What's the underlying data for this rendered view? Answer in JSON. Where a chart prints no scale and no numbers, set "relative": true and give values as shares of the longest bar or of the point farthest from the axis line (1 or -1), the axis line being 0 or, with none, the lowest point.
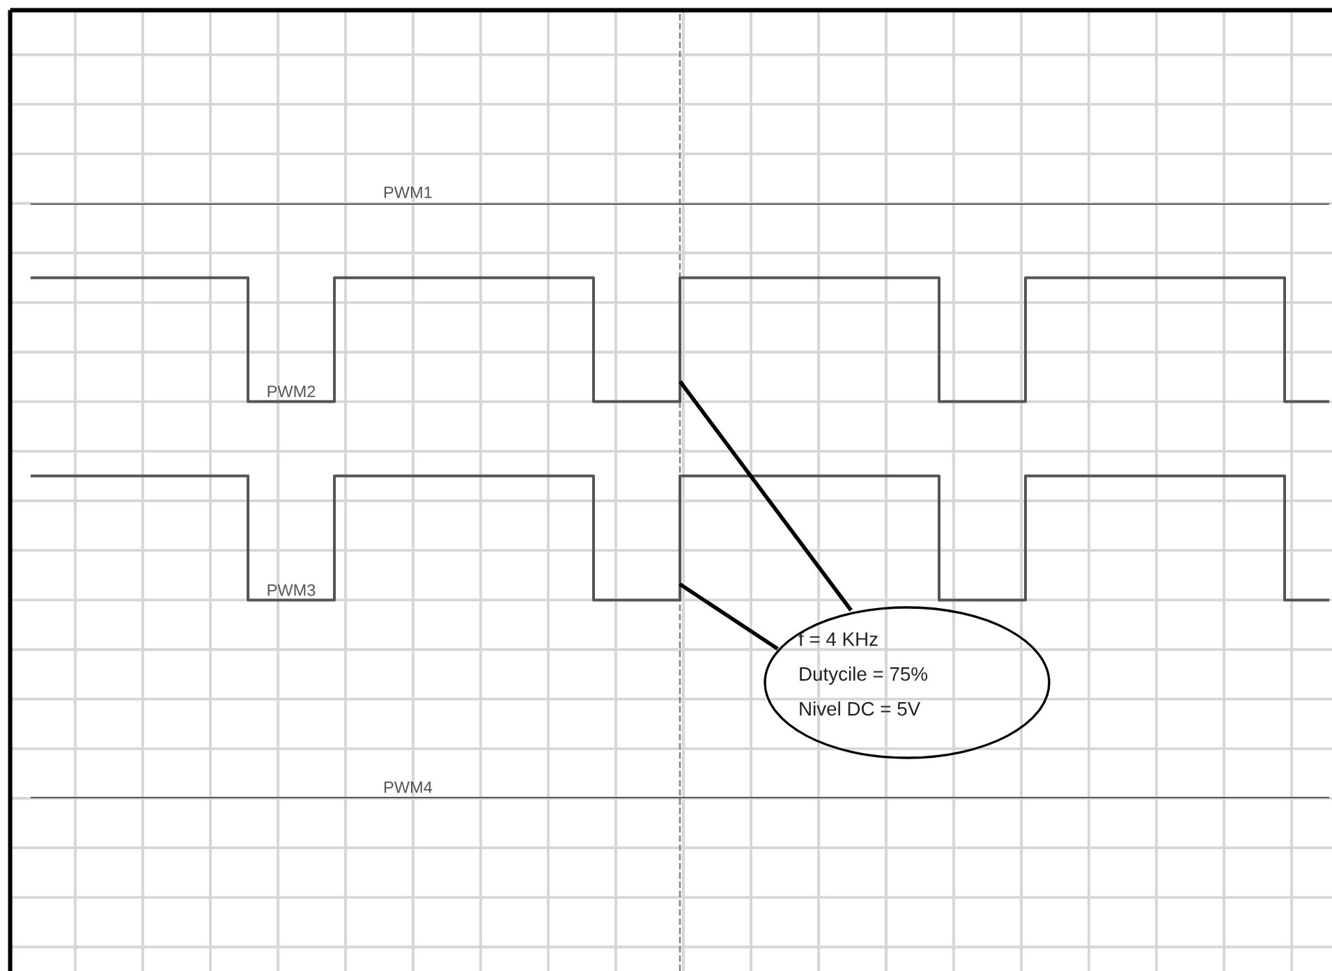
{
  "chart_data": {
    "type": "step",
    "relative": true,
    "categories": [
      null,
      null,
      null,
      null,
      null,
      null,
      null,
      null,
      null,
      null,
      null,
      null,
      null,
      null,
      null,
      null,
      null,
      null,
      null,
      null,
      null,
      null,
      null,
      null,
      null,
      null,
      null,
      null,
      null,
      null,
      null
    ],
    "series": [
      {
        "name": "PWM1",
        "color": "#555555",
        "values": [
          1,
          1,
          1,
          1,
          1,
          1,
          1,
          1,
          1,
          1,
          1,
          1,
          1,
          1,
          1,
          1,
          1,
          1,
          1,
          1,
          1,
          1,
          1,
          1,
          1,
          1,
          1,
          1,
          1,
          1,
          1
        ]
      },
      {
        "name": "PWM2",
        "color": "#555555",
        "values": [
          0.875,
          0.875,
          0.875,
          0.875,
          0.875,
          0.667,
          0.667,
          0.875,
          0.875,
          0.875,
          0.875,
          0.875,
          0.875,
          0.667,
          0.667,
          0.875,
          0.875,
          0.875,
          0.875,
          0.875,
          0.875,
          0.667,
          0.667,
          0.875,
          0.875,
          0.875,
          0.875,
          0.875,
          0.875,
          0.667,
          0.667
        ]
      },
      {
        "name": "PWM3",
        "color": "#555555",
        "values": [
          0.542,
          0.542,
          0.542,
          0.542,
          0.542,
          0.333,
          0.333,
          0.542,
          0.542,
          0.542,
          0.542,
          0.542,
          0.542,
          0.333,
          0.333,
          0.542,
          0.542,
          0.542,
          0.542,
          0.542,
          0.542,
          0.333,
          0.333,
          0.542,
          0.542,
          0.542,
          0.542,
          0.542,
          0.542,
          0.333,
          0.333
        ]
      },
      {
        "name": "PWM4",
        "color": "#555555",
        "values": [
          0,
          0,
          0,
          0,
          0,
          0,
          0,
          0,
          0,
          0,
          0,
          0,
          0,
          0,
          0,
          0,
          0,
          0,
          0,
          0,
          0,
          0,
          0,
          0,
          0,
          0,
          0,
          0,
          0,
          0,
          0
        ]
      }
    ],
    "grid": true,
    "annotations": [
      "f = 4 KHz",
      "Dutycile = 75%",
      "Nivel DC = 5V"
    ]
  }
}
